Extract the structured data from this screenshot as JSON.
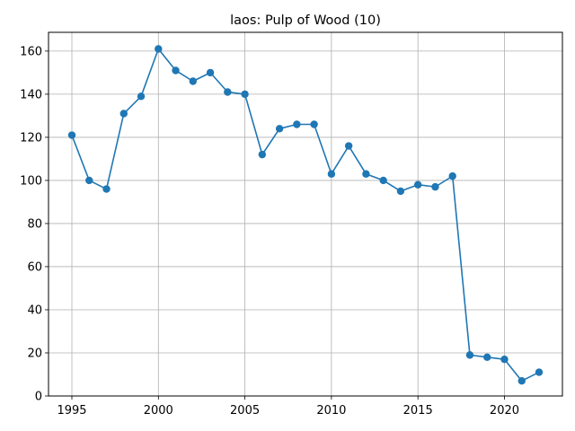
{
  "chart_data": {
    "type": "line",
    "title": "laos: Pulp of Wood (10)",
    "xlabel": "",
    "ylabel": "",
    "xlim": [
      1993.65,
      2023.35
    ],
    "ylim": [
      0,
      168.7
    ],
    "xticks": [
      1995,
      2000,
      2005,
      2010,
      2015,
      2020
    ],
    "yticks": [
      0,
      20,
      40,
      60,
      80,
      100,
      120,
      140,
      160
    ],
    "grid": true,
    "series": [
      {
        "color": "#1f77b4",
        "marker": "circle",
        "x": [
          1995,
          1996,
          1997,
          1998,
          1999,
          2000,
          2001,
          2002,
          2003,
          2004,
          2005,
          2006,
          2007,
          2008,
          2009,
          2010,
          2011,
          2012,
          2013,
          2014,
          2015,
          2016,
          2017,
          2018,
          2019,
          2020,
          2021,
          2022
        ],
        "y": [
          121,
          100,
          96,
          131,
          139,
          161,
          151,
          146,
          150,
          141,
          140,
          112,
          124,
          126,
          126,
          103,
          116,
          103,
          100,
          95,
          98,
          97,
          102,
          19,
          18,
          17,
          7,
          11
        ]
      }
    ]
  }
}
